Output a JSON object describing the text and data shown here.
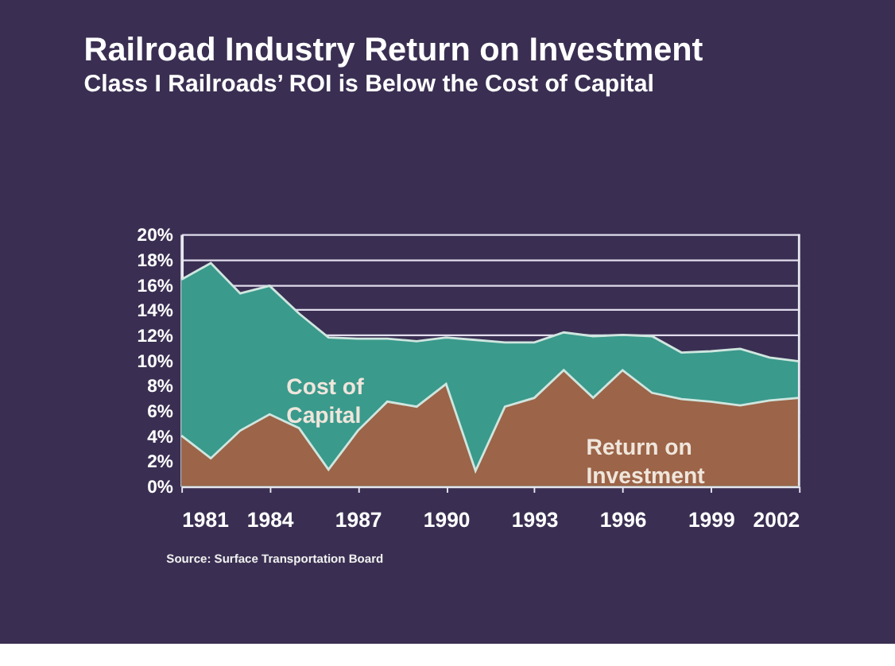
{
  "chart_data": {
    "type": "area",
    "title": "Railroad Industry Return on Investment",
    "subtitle": "Class I Railroads’ ROI is Below the Cost of Capital",
    "x": [
      1981,
      1982,
      1983,
      1984,
      1985,
      1986,
      1987,
      1988,
      1989,
      1990,
      1991,
      1992,
      1993,
      1994,
      1995,
      1996,
      1997,
      1998,
      1999,
      2000,
      2001,
      2002
    ],
    "series": [
      {
        "name": "Cost of Capital",
        "color": "#3a9a8c",
        "values": [
          16.4,
          17.7,
          15.3,
          15.9,
          13.7,
          11.8,
          11.7,
          11.7,
          11.5,
          11.8,
          11.6,
          11.4,
          11.4,
          12.2,
          11.9,
          12.0,
          11.9,
          10.6,
          10.7,
          10.9,
          10.2,
          9.9
        ]
      },
      {
        "name": "Return on Investment",
        "color": "#9c6448",
        "values": [
          4.0,
          2.2,
          4.4,
          5.7,
          4.6,
          1.3,
          4.4,
          6.7,
          6.3,
          8.1,
          1.2,
          6.3,
          7.0,
          9.2,
          7.0,
          9.2,
          7.4,
          6.9,
          6.7,
          6.4,
          6.8,
          7.0
        ]
      }
    ],
    "xlim": [
      1981,
      2002
    ],
    "xticks": [
      1981,
      1984,
      1987,
      1990,
      1993,
      1996,
      1999,
      2002
    ],
    "ylim": [
      0,
      20
    ],
    "yticks": [
      {
        "value": 0,
        "label": "0%"
      },
      {
        "value": 2,
        "label": "2%"
      },
      {
        "value": 4,
        "label": "4%"
      },
      {
        "value": 6,
        "label": "6%"
      },
      {
        "value": 8,
        "label": "8%"
      },
      {
        "value": 10,
        "label": "10%"
      },
      {
        "value": 12,
        "label": "12%"
      },
      {
        "value": 14,
        "label": "14%"
      },
      {
        "value": 16,
        "label": "16%"
      },
      {
        "value": 18,
        "label": "18%"
      },
      {
        "value": 20,
        "label": "20%"
      }
    ],
    "grid": "y",
    "annotations": [
      "Source:  Surface Transportation Board"
    ]
  }
}
